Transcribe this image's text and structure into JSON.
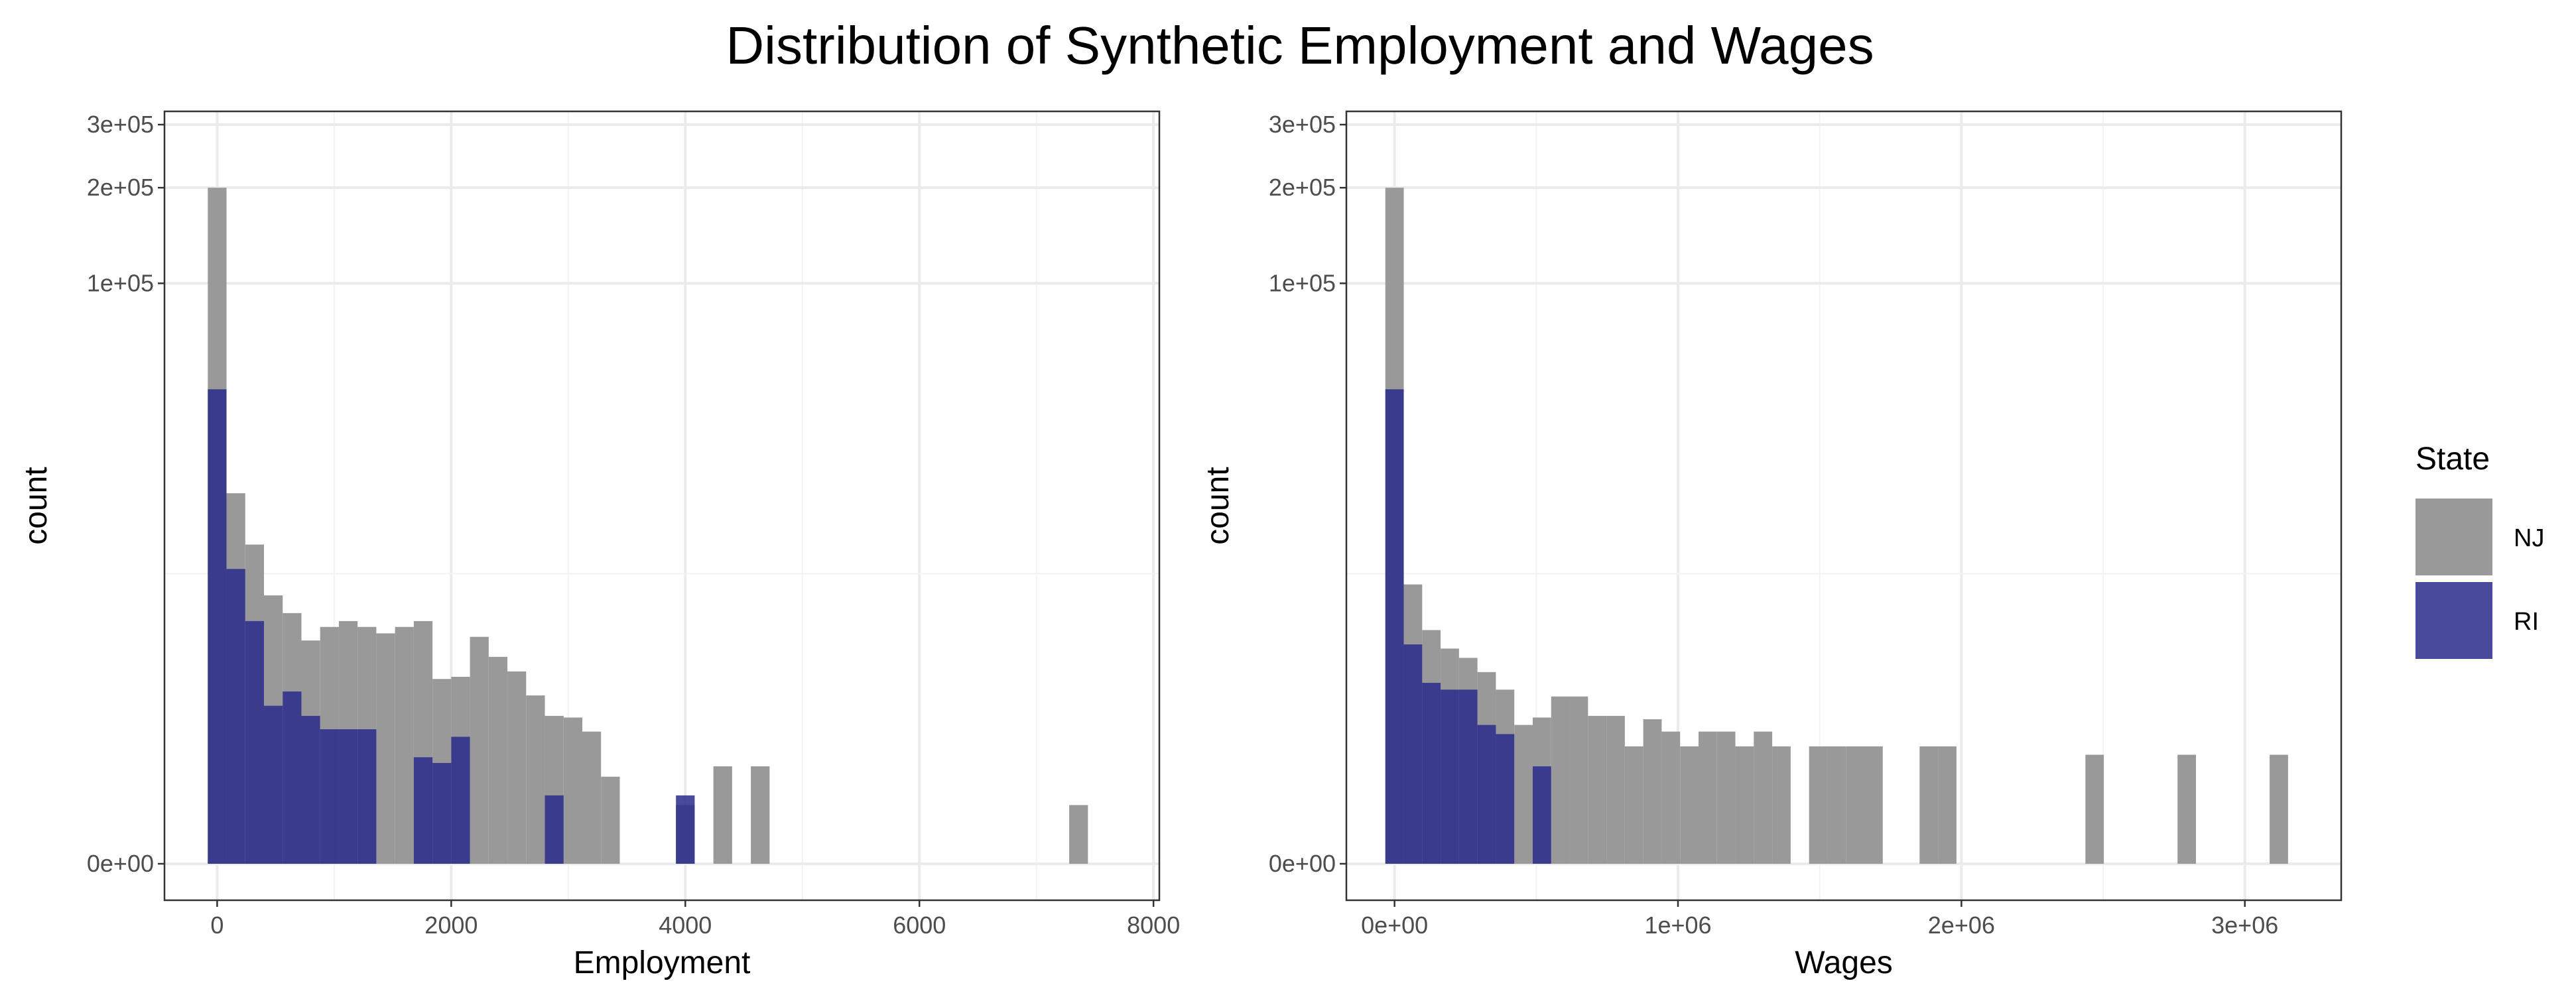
{
  "chart_data": {
    "title": "Distribution of Synthetic Employment and Wages",
    "type": "histogram",
    "overlay": "stacked histogram with NJ behind RI",
    "y_scale": "non-linear (pseudo-log/sqrt)",
    "grid": true,
    "legend": {
      "title": "State",
      "position": "right",
      "items": [
        {
          "label": "NJ",
          "color": "#999999"
        },
        {
          "label": "RI",
          "color": "#2a2a8c"
        }
      ]
    },
    "panels": [
      {
        "id": "employment",
        "xlabel": "Employment",
        "ylabel": "count",
        "xlim": [
          -450,
          8050
        ],
        "x_ticks": [
          0,
          2000,
          4000,
          6000,
          8000
        ],
        "x_tick_labels": [
          "0",
          "2000",
          "4000",
          "6000",
          "8000"
        ],
        "y_ticks": [
          0,
          100000,
          200000,
          300000
        ],
        "y_tick_labels": [
          "0e+00",
          "1e+05",
          "2e+05",
          "3e+05"
        ],
        "bin_width": 160,
        "x": [
          0,
          160,
          320,
          480,
          640,
          800,
          960,
          1120,
          1280,
          1440,
          1600,
          1760,
          1920,
          2080,
          2240,
          2400,
          2560,
          2720,
          2880,
          3040,
          3200,
          3360,
          3520,
          3680,
          3840,
          4000,
          4160,
          4320,
          4480,
          4640,
          4800,
          4960,
          5120,
          5280,
          5440,
          5600,
          5760,
          5920,
          6080,
          6240,
          6400,
          6560,
          6720,
          6880,
          7040,
          7200,
          7360,
          7520,
          7680
        ],
        "series": [
          {
            "name": "NJ",
            "values": [
              200000,
              13000,
              6600,
              3000,
              2200,
              1300,
              1700,
              1900,
              1700,
              1500,
              1700,
              1900,
              550,
              580,
              1400,
              920,
              660,
              360,
              200,
              190,
              120,
              18,
              0,
              0,
              0,
              3,
              0,
              30,
              0,
              30,
              0,
              0,
              0,
              0,
              0,
              0,
              0,
              0,
              0,
              0,
              0,
              0,
              0,
              0,
              0,
              0,
              3,
              0,
              0
            ]
          },
          {
            "name": "RI",
            "values": [
              40000,
              4600,
              1900,
              270,
              400,
              200,
              130,
              130,
              130,
              0,
              0,
              45,
              35,
              100,
              0,
              0,
              0,
              0,
              6,
              0,
              0,
              0,
              0,
              0,
              0,
              6,
              0,
              0,
              0,
              0,
              0,
              0,
              0,
              0,
              0,
              0,
              0,
              0,
              0,
              0,
              0,
              0,
              0,
              0,
              0,
              0,
              0,
              0,
              0
            ]
          }
        ]
      },
      {
        "id": "wages",
        "xlabel": "Wages",
        "ylabel": "count",
        "xlim": [
          -170000,
          3340000
        ],
        "x_ticks": [
          0,
          1000000,
          2000000,
          3000000
        ],
        "x_tick_labels": [
          "0e+00",
          "1e+06",
          "2e+06",
          "3e+06"
        ],
        "y_ticks": [
          0,
          100000,
          200000,
          300000
        ],
        "y_tick_labels": [
          "0e+00",
          "1e+05",
          "2e+05",
          "3e+05"
        ],
        "bin_width": 65000,
        "x": [
          0,
          65000,
          130000,
          195000,
          260000,
          325000,
          390000,
          455000,
          520000,
          585000,
          650000,
          715000,
          780000,
          845000,
          910000,
          975000,
          1040000,
          1105000,
          1170000,
          1235000,
          1300000,
          1365000,
          1430000,
          1495000,
          1560000,
          1625000,
          1690000,
          1755000,
          1820000,
          1885000,
          1950000,
          2015000,
          2080000,
          2145000,
          2210000,
          2275000,
          2340000,
          2405000,
          2470000,
          2535000,
          2600000,
          2665000,
          2730000,
          2795000,
          2860000,
          2925000,
          2990000,
          3055000,
          3120000
        ],
        "series": [
          {
            "name": "NJ",
            "values": [
              200000,
              3600,
              1600,
              1100,
              900,
              650,
              420,
              150,
              190,
              350,
              350,
              200,
              200,
              70,
              180,
              120,
              70,
              120,
              120,
              70,
              120,
              70,
              0,
              70,
              70,
              70,
              70,
              0,
              0,
              70,
              70,
              0,
              0,
              0,
              0,
              0,
              0,
              0,
              50,
              0,
              0,
              0,
              0,
              50,
              0,
              0,
              0,
              0,
              50
            ]
          },
          {
            "name": "RI",
            "values": [
              40000,
              1200,
              500,
              420,
              420,
              150,
              110,
              0,
              30,
              0,
              0,
              0,
              0,
              0,
              0,
              0,
              0,
              0,
              0,
              0,
              0,
              0,
              0,
              0,
              0,
              0,
              0,
              0,
              0,
              0,
              0,
              0,
              0,
              0,
              0,
              0,
              0,
              0,
              0,
              0,
              0,
              0,
              0,
              0,
              0,
              0,
              0,
              0,
              0
            ]
          }
        ]
      }
    ]
  }
}
